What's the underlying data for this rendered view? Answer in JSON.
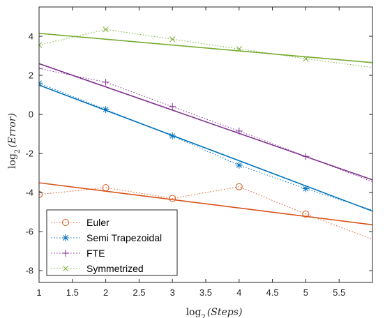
{
  "chart_data": {
    "type": "line",
    "xlabel_base": "log",
    "xlabel_sub": "2",
    "xlabel_arg": "(Steps)",
    "ylabel_base": "log",
    "ylabel_sub": "2",
    "ylabel_arg": "(Error)",
    "xlim": [
      1,
      6
    ],
    "ylim": [
      -8.6,
      5.5
    ],
    "xticks": [
      1,
      1.5,
      2,
      2.5,
      3,
      3.5,
      4,
      4.5,
      5,
      5.5
    ],
    "xtick_labels": [
      "1",
      "1.5",
      "2",
      "2.5",
      "3",
      "3.5",
      "4",
      "4.5",
      "5",
      "5.5"
    ],
    "yticks": [
      -8,
      -6,
      -4,
      -2,
      0,
      2,
      4
    ],
    "ytick_labels": [
      "-8",
      "-6",
      "-4",
      "-2",
      "0",
      "2",
      "4"
    ],
    "grid": false,
    "legend_position": "bottom-left",
    "series": [
      {
        "name": "Euler",
        "color": "#D95319",
        "marker": "circle",
        "x": [
          1,
          2,
          3,
          4,
          5,
          6
        ],
        "y": [
          -4.1,
          -3.75,
          -4.3,
          -3.7,
          -5.1,
          -6.4
        ],
        "fit": {
          "x": [
            1,
            6
          ],
          "y": [
            -3.5,
            -5.65
          ]
        }
      },
      {
        "name": "Semi Trapezoidal",
        "color": "#0072BD",
        "marker": "asterisk",
        "x": [
          1,
          2,
          3,
          4,
          5,
          6
        ],
        "y": [
          1.6,
          0.25,
          -1.1,
          -2.6,
          -3.8,
          -4.9
        ],
        "fit": {
          "x": [
            1,
            6
          ],
          "y": [
            1.5,
            -4.95
          ]
        }
      },
      {
        "name": "FTE",
        "color": "#7E2F8E",
        "marker": "plus",
        "x": [
          1,
          2,
          3,
          4,
          5,
          6
        ],
        "y": [
          2.35,
          1.65,
          0.4,
          -0.85,
          -2.15,
          -3.45
        ],
        "fit": {
          "x": [
            1,
            6
          ],
          "y": [
            2.6,
            -3.35
          ]
        }
      },
      {
        "name": "Symmetrized",
        "color": "#77AC30",
        "marker": "cross",
        "x": [
          1,
          2,
          3,
          4,
          5,
          6
        ],
        "y": [
          3.55,
          4.35,
          3.85,
          3.35,
          2.85,
          2.4
        ],
        "fit": {
          "x": [
            1,
            6
          ],
          "y": [
            4.15,
            2.65
          ]
        }
      }
    ]
  }
}
